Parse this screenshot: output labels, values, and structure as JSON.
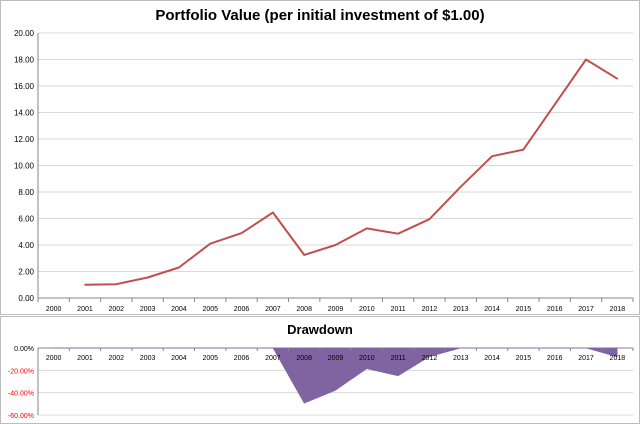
{
  "chart_data": [
    {
      "type": "line",
      "title": "Portfolio Value (per initial investment of $1.00)",
      "categories": [
        "2000",
        "2001",
        "2002",
        "2003",
        "2004",
        "2005",
        "2006",
        "2007",
        "2008",
        "2009",
        "2010",
        "2011",
        "2012",
        "2013",
        "2014",
        "2015",
        "2016",
        "2017",
        "2018"
      ],
      "values": [
        null,
        1.0,
        1.04,
        1.55,
        2.3,
        4.1,
        4.9,
        6.45,
        3.25,
        4.0,
        5.25,
        4.85,
        5.95,
        8.4,
        10.7,
        11.2,
        14.6,
        18.0,
        16.55
      ],
      "ylim": [
        0,
        20
      ],
      "yticks": [
        "0.00",
        "2.00",
        "4.00",
        "6.00",
        "8.00",
        "10.00",
        "12.00",
        "14.00",
        "16.00",
        "18.00",
        "20.00"
      ],
      "grid": true,
      "color": "#c0504d"
    },
    {
      "type": "area",
      "title": "Drawdown",
      "categories": [
        "2000",
        "2001",
        "2002",
        "2003",
        "2004",
        "2005",
        "2006",
        "2007",
        "2008",
        "2009",
        "2010",
        "2011",
        "2012",
        "2013",
        "2014",
        "2015",
        "2016",
        "2017",
        "2018"
      ],
      "values": [
        0,
        0,
        0,
        0,
        0,
        0,
        0,
        0,
        -49.5,
        -38.0,
        -18.5,
        -25.0,
        -7.8,
        0,
        0,
        0,
        0,
        0,
        -8.0
      ],
      "ylim": [
        -60,
        0
      ],
      "yticks": [
        "0.00%",
        "-20.00%",
        "-40.00%",
        "-60.00%"
      ],
      "grid": true,
      "color": "#8064a2"
    }
  ]
}
